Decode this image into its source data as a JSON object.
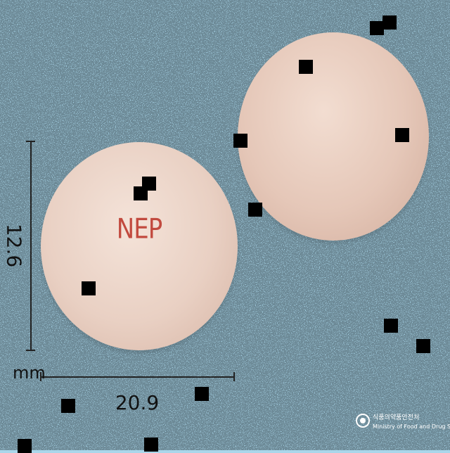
{
  "pill": {
    "imprint": "NEP",
    "height_value": "12.6",
    "width_value": "20.9",
    "unit": "mm"
  },
  "logo": {
    "korean": "식품의약품안전처",
    "english": "Ministry of Food and Drug Safety"
  },
  "colors": {
    "background": "#a9d6ea",
    "pill": "#ebd3c6",
    "imprint": "#c24a3f"
  }
}
